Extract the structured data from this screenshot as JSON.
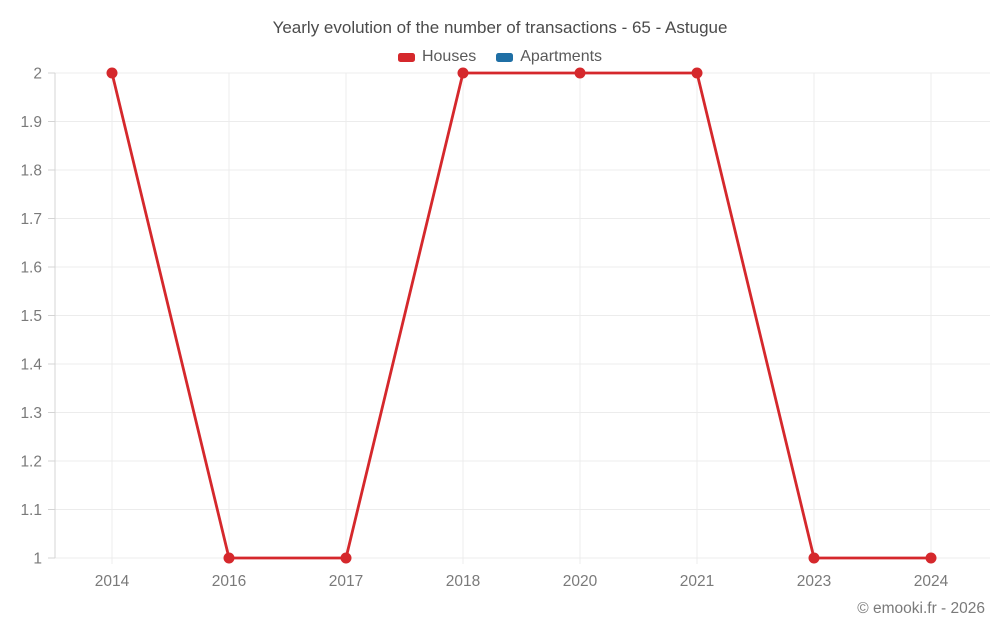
{
  "title": "Yearly evolution of the number of transactions - 65 - Astugue",
  "copyright": "© emooki.fr - 2026",
  "chart_data": {
    "type": "line",
    "title": "Yearly evolution of the number of transactions - 65 - Astugue",
    "categories": [
      "2014",
      "2016",
      "2017",
      "2018",
      "2020",
      "2021",
      "2023",
      "2024"
    ],
    "series": [
      {
        "name": "Houses",
        "color": "#d5282c",
        "values": [
          2,
          1,
          1,
          2,
          2,
          2,
          1,
          1
        ]
      },
      {
        "name": "Apartments",
        "color": "#1f6fa5",
        "values": []
      }
    ],
    "xlabel": "",
    "ylabel": "",
    "ylim": [
      1,
      2
    ],
    "ytick_step": 0.1,
    "ytick_labels": [
      "1",
      "1.1",
      "1.2",
      "1.3",
      "1.4",
      "1.5",
      "1.6",
      "1.7",
      "1.8",
      "1.9",
      "2"
    ],
    "grid": true,
    "legend_position": "top",
    "colors": {
      "gridline": "#ececec",
      "axis": "#d4d4d4",
      "axis_label": "#7a7a7a",
      "title_text": "#4b4b4b",
      "legend_text": "#5a5a5a"
    }
  }
}
